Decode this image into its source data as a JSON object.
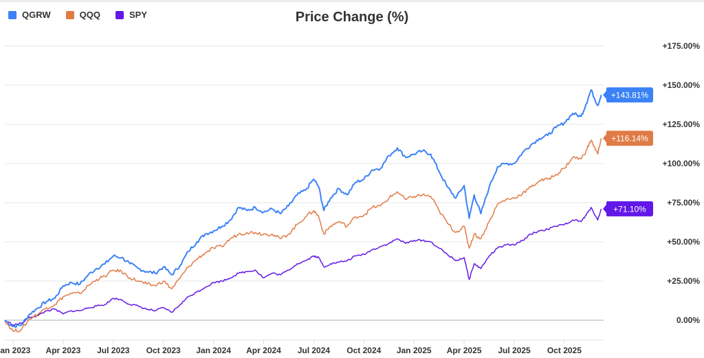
{
  "chart_data": {
    "type": "line",
    "title": "Price Change (%)",
    "xlabel": "",
    "ylabel": "",
    "ylim": [
      -10,
      185
    ],
    "x_domain_months": [
      -0.5,
      35.2
    ],
    "grid": true,
    "legend_position": "top-left",
    "y_ticks": [
      0,
      25,
      50,
      75,
      100,
      125,
      150,
      175
    ],
    "y_tick_labels": [
      "0.00%",
      "+25.00%",
      "+50.00%",
      "+75.00%",
      "+100.00%",
      "+125.00%",
      "+150.00%",
      "+175.00%"
    ],
    "x_ticks": [
      {
        "label": "Jan 2023",
        "month": 0
      },
      {
        "label": "Apr 2023",
        "month": 3
      },
      {
        "label": "Jul 2023",
        "month": 6
      },
      {
        "label": "Oct 2023",
        "month": 9
      },
      {
        "label": "Jan 2024",
        "month": 12
      },
      {
        "label": "Apr 2024",
        "month": 15
      },
      {
        "label": "Jul 2024",
        "month": 18
      },
      {
        "label": "Oct 2024",
        "month": 21
      },
      {
        "label": "Jan 2025",
        "month": 24
      },
      {
        "label": "Apr 2025",
        "month": 27
      },
      {
        "label": "Jul 2025",
        "month": 30
      },
      {
        "label": "Oct 2025",
        "month": 33
      }
    ],
    "x": [
      -0.5,
      0,
      0.5,
      1,
      1.5,
      2,
      2.5,
      3,
      3.5,
      4,
      4.5,
      5,
      5.5,
      6,
      6.5,
      7,
      7.5,
      8,
      8.5,
      9,
      9.5,
      10,
      10.5,
      11,
      11.5,
      12,
      12.5,
      13,
      13.5,
      14,
      14.5,
      15,
      15.5,
      16,
      16.5,
      17,
      17.5,
      18,
      18.3,
      18.6,
      19,
      19.5,
      20,
      20.5,
      21,
      21.5,
      22,
      22.5,
      23,
      23.5,
      24,
      24.5,
      25,
      25.5,
      26,
      26.5,
      27,
      27.3,
      27.6,
      28,
      28.5,
      29,
      29.5,
      30,
      30.5,
      31,
      31.5,
      32,
      32.5,
      33,
      33.5,
      34,
      34.3,
      34.6,
      35,
      35.2
    ],
    "series": [
      {
        "name": "QGRW",
        "color": "#3b82f6",
        "last_label": "+143.81%",
        "values": [
          0,
          -4,
          -3,
          4,
          8,
          12,
          14,
          22,
          24,
          23,
          29,
          33,
          36,
          41,
          40,
          36,
          33,
          31,
          30,
          34,
          29,
          35,
          44,
          50,
          55,
          57,
          60,
          64,
          72,
          70,
          72,
          69,
          71,
          68,
          73,
          80,
          83,
          90,
          85,
          70,
          78,
          84,
          80,
          88,
          90,
          96,
          97,
          105,
          110,
          104,
          106,
          108,
          106,
          95,
          85,
          78,
          86,
          65,
          80,
          68,
          85,
          98,
          100,
          100,
          107,
          112,
          116,
          118,
          123,
          126,
          132,
          130,
          138,
          147,
          137,
          143.81
        ]
      },
      {
        "name": "QQQ",
        "color": "#e07b45",
        "last_label": "+116.14%",
        "values": [
          0,
          -7,
          -6,
          1,
          4,
          8,
          10,
          15,
          17,
          17,
          22,
          26,
          28,
          32,
          31,
          27,
          25,
          23,
          22,
          25,
          20,
          27,
          34,
          39,
          43,
          46,
          47,
          52,
          55,
          56,
          56,
          55,
          55,
          52,
          55,
          61,
          66,
          70,
          66,
          55,
          60,
          63,
          60,
          66,
          67,
          72,
          73,
          78,
          82,
          77,
          79,
          80,
          79,
          70,
          62,
          56,
          60,
          46,
          55,
          52,
          63,
          74,
          77,
          78,
          81,
          85,
          89,
          90,
          93,
          97,
          104,
          103,
          108,
          115,
          106,
          116.14
        ]
      },
      {
        "name": "SPY",
        "color": "#6118e8",
        "last_label": "+71.10%",
        "values": [
          0,
          -3,
          -2,
          2,
          3,
          6,
          7,
          4,
          6,
          6,
          8,
          9,
          10,
          14,
          13,
          10,
          9,
          7,
          6,
          8,
          5,
          10,
          15,
          18,
          21,
          24,
          25,
          27,
          30,
          31,
          32,
          27,
          30,
          29,
          32,
          36,
          38,
          41,
          40,
          34,
          36,
          37,
          38,
          41,
          42,
          45,
          47,
          49,
          52,
          49,
          51,
          51,
          50,
          46,
          42,
          38,
          40,
          26,
          36,
          33,
          41,
          46,
          48,
          48,
          51,
          55,
          57,
          58,
          60,
          61,
          64,
          63,
          67,
          72,
          64,
          71.1
        ]
      }
    ]
  }
}
